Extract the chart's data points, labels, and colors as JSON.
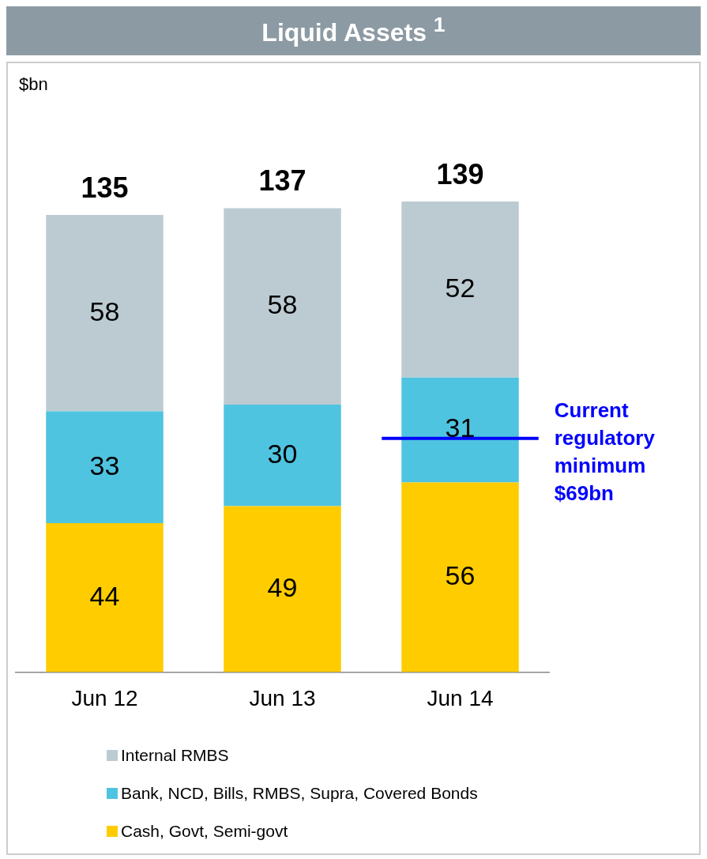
{
  "chart_data": {
    "type": "bar",
    "title": "Liquid Assets $^{1}$",
    "annotations": [
      "$bn"
    ],
    "categories": [
      "Jun 12",
      "Jun 13",
      "Jun 14"
    ],
    "stacked": true,
    "series": [
      {
        "name": "Cash, Govt, Semi-govt",
        "color": "#ffcc00",
        "values": [
          44,
          49,
          56
        ]
      },
      {
        "name": "Bank, NCD, Bills, RMBS, Supra, Covered Bonds",
        "color": "#4fc4e0",
        "values": [
          33,
          30,
          31
        ]
      },
      {
        "name": "Internal RMBS",
        "color": "#bccbd2",
        "values": [
          58,
          58,
          52
        ]
      }
    ],
    "totals": [
      "135",
      "137",
      "139"
    ],
    "data_labels": true,
    "tick_labels": "x",
    "grid": false,
    "legend": "bottom",
    "ref_lines": [
      {
        "axis": "y",
        "value": 69,
        "label": "Current regulatory minimum $69bn",
        "color": "#0000ff"
      }
    ]
  }
}
